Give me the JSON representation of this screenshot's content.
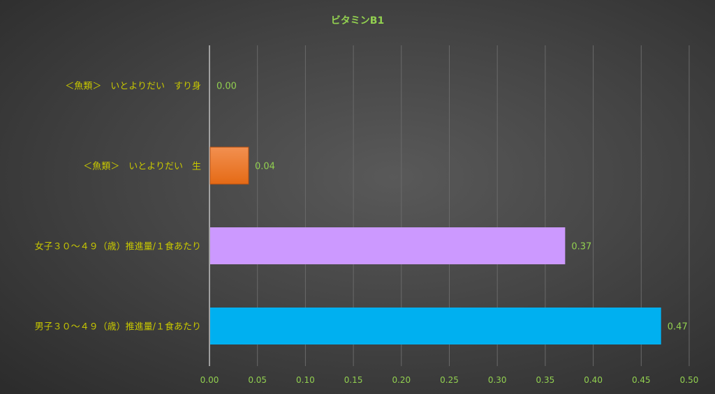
{
  "chart_data": {
    "type": "bar",
    "orientation": "horizontal",
    "title": "ビタミンB1",
    "categories": [
      "＜魚類＞　いとよりだい　すり身",
      "＜魚類＞　いとよりだい　生",
      "女子３０～４９（歳）推進量/１食あたり",
      "男子３０～４９（歳）推進量/１食あたり"
    ],
    "values": [
      0.0,
      0.04,
      0.37,
      0.47
    ],
    "data_labels": [
      "0.00",
      "0.04",
      "0.37",
      "0.47"
    ],
    "bar_colors": [
      "#f08030",
      "#f08030",
      "#cc99ff",
      "#00b0f0"
    ],
    "xlim": [
      0,
      0.5
    ],
    "x_ticks": [
      "0.00",
      "0.05",
      "0.10",
      "0.15",
      "0.20",
      "0.25",
      "0.30",
      "0.35",
      "0.40",
      "0.45",
      "0.50"
    ],
    "grid": "vertical",
    "xlabel": "",
    "ylabel": "",
    "colors": {
      "title": "#92d050",
      "category_labels": "#c8c800",
      "tick_labels": "#92d050",
      "data_labels": "#92d050"
    }
  }
}
